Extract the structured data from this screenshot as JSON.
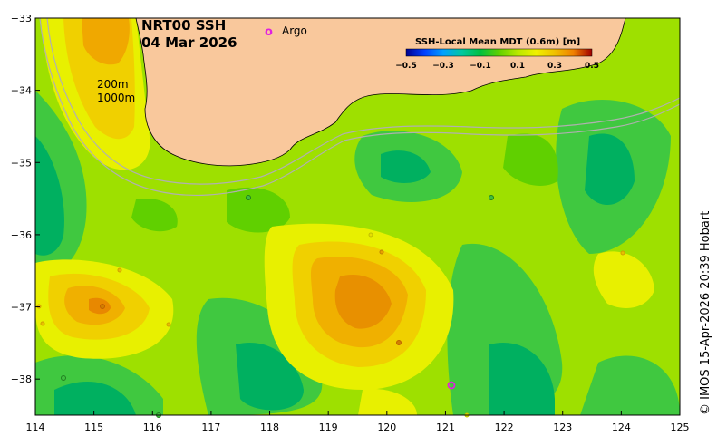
{
  "title": {
    "line1": "NRT00 SSH",
    "line2": "04 Mar 2026"
  },
  "legend": {
    "argo_symbol": "o",
    "argo_label": "Argo",
    "argo_color": "#e020e0"
  },
  "contours": {
    "label_200": "200m",
    "label_1000": "1000m"
  },
  "colorbar": {
    "title": "SSH-Local Mean MDT (0.6m) [m]",
    "ticks": [
      "−0.5",
      "−0.3",
      "−0.1",
      "0.1",
      "0.3",
      "0.5"
    ],
    "range": [
      -0.5,
      0.5
    ],
    "colors": [
      "#000090",
      "#0040ff",
      "#00a0ff",
      "#00c8a0",
      "#00c040",
      "#60d000",
      "#b8e800",
      "#f0f000",
      "#f0c000",
      "#f08000",
      "#d04000",
      "#a00000"
    ]
  },
  "axes": {
    "x_ticks": [
      "114",
      "115",
      "116",
      "117",
      "118",
      "119",
      "120",
      "121",
      "122",
      "123",
      "124",
      "125"
    ],
    "y_ticks": [
      "−33",
      "−34",
      "−35",
      "−36",
      "−37",
      "−38"
    ],
    "x_range": [
      114,
      125
    ],
    "y_range": [
      -38.5,
      -33
    ]
  },
  "land_color": "#f9c89c",
  "credit": "© IMOS 15-Apr-2026 20:39 Hobart"
}
